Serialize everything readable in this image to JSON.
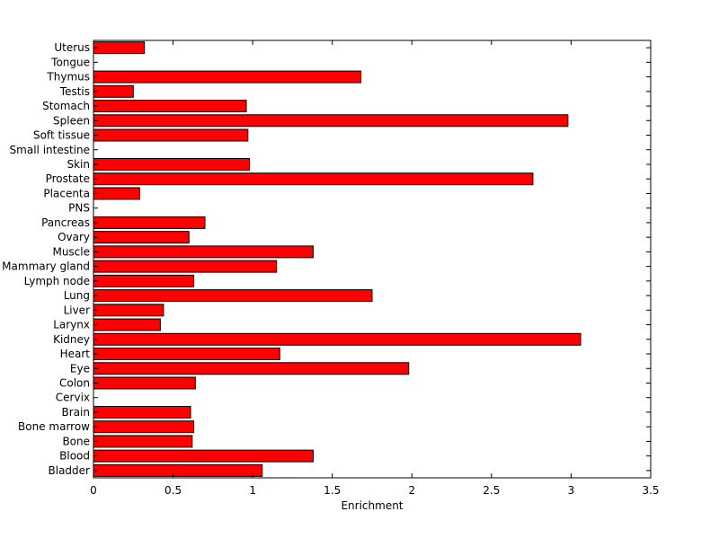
{
  "chart_data": {
    "type": "bar",
    "orientation": "horizontal",
    "title": "",
    "xlabel": "Enrichment",
    "ylabel": "",
    "xlim": [
      0,
      3.5
    ],
    "x_ticks": [
      0,
      0.5,
      1,
      1.5,
      2,
      2.5,
      3,
      3.5
    ],
    "x_tick_labels": [
      "0",
      "0.5",
      "1",
      "1.5",
      "2",
      "2.5",
      "3",
      "3.5"
    ],
    "grid": false,
    "legend": "none",
    "colors": {
      "bar_fill": "#ff0000",
      "bar_edge": "#000000",
      "axis": "#000000",
      "background": "#ffffff"
    },
    "categories": [
      "Bladder",
      "Blood",
      "Bone",
      "Bone marrow",
      "Brain",
      "Cervix",
      "Colon",
      "Eye",
      "Heart",
      "Kidney",
      "Larynx",
      "Liver",
      "Lung",
      "Lymph node",
      "Mammary gland",
      "Muscle",
      "Ovary",
      "Pancreas",
      "PNS",
      "Placenta",
      "Prostate",
      "Skin",
      "Small intestine",
      "Soft tissue",
      "Spleen",
      "Stomach",
      "Testis",
      "Thymus",
      "Tongue",
      "Uterus"
    ],
    "values": [
      1.06,
      1.38,
      0.62,
      0.63,
      0.61,
      0,
      0.64,
      1.98,
      1.17,
      3.06,
      0.42,
      0.44,
      1.75,
      0.63,
      1.15,
      1.38,
      0.6,
      0.7,
      0,
      0.29,
      2.76,
      0.98,
      0,
      0.97,
      2.98,
      0.96,
      0.25,
      1.68,
      0,
      0.32
    ]
  }
}
